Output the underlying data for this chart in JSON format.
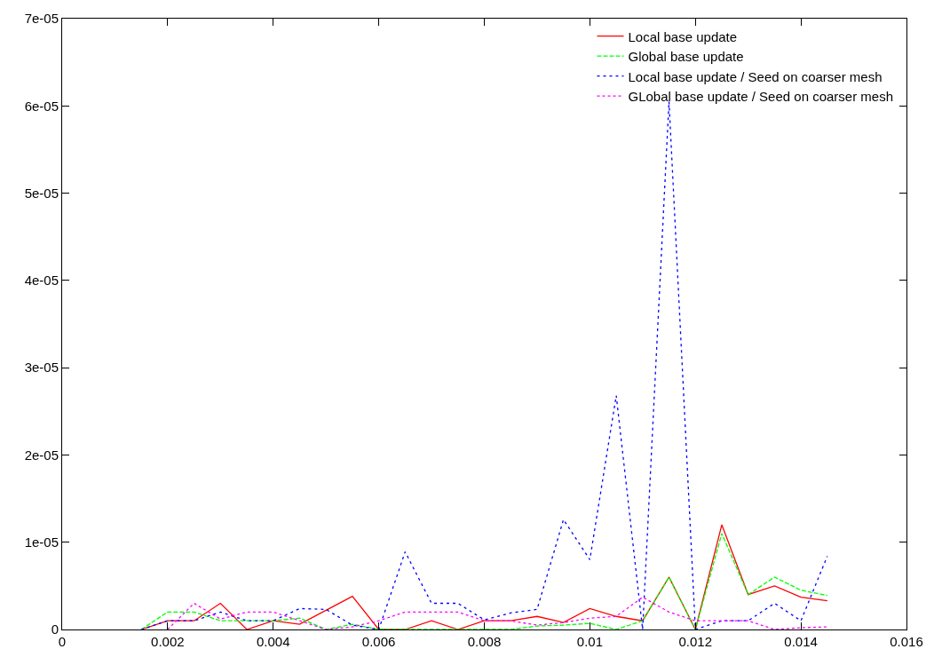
{
  "chart_data": {
    "type": "line",
    "x": [
      0.0015,
      0.002,
      0.0025,
      0.003,
      0.0035,
      0.004,
      0.0045,
      0.005,
      0.0055,
      0.006,
      0.0065,
      0.007,
      0.0075,
      0.008,
      0.0085,
      0.009,
      0.0095,
      0.01,
      0.0105,
      0.011,
      0.0115,
      0.012,
      0.0125,
      0.013,
      0.0135,
      0.014,
      0.0145
    ],
    "series": [
      {
        "name": "Local base update",
        "color": "#ff0000",
        "line_style": "solid",
        "values": [
          0,
          1e-06,
          1e-06,
          3e-06,
          0,
          1e-06,
          6e-07,
          2.2e-06,
          3.8e-06,
          0,
          0,
          1e-06,
          0,
          1e-06,
          1e-06,
          1.5e-06,
          8e-07,
          2.4e-06,
          1.5e-06,
          1e-06,
          6e-06,
          0,
          1.2e-05,
          4e-06,
          5e-06,
          3.7e-06,
          3.3e-06
        ]
      },
      {
        "name": "Global base update",
        "color": "#00ff00",
        "line_style": "dashed",
        "values": [
          0,
          2e-06,
          2e-06,
          1e-06,
          1e-06,
          1e-06,
          1.3e-06,
          0,
          6e-07,
          0,
          0,
          0,
          0,
          0,
          0,
          4e-07,
          5e-07,
          7e-07,
          0,
          1e-06,
          6e-06,
          0,
          1.1e-05,
          4e-06,
          6e-06,
          4.5e-06,
          3.9e-06
        ]
      },
      {
        "name": "Local base update / Seed on coarser mesh",
        "color": "#0000ff",
        "line_style": "dashed_fine",
        "values": [
          0,
          1e-06,
          1e-06,
          2e-06,
          1e-06,
          1e-06,
          2.4e-06,
          2.3e-06,
          5e-07,
          0,
          8.9e-06,
          3e-06,
          3e-06,
          1.1e-06,
          1.9e-06,
          2.3e-06,
          1.26e-05,
          8e-06,
          2.68e-05,
          0,
          6.05e-05,
          0,
          1e-06,
          1e-06,
          3e-06,
          1e-06,
          8.4e-06
        ]
      },
      {
        "name": "GLobal base update / Seed on coarser mesh",
        "color": "#ff00ff",
        "line_style": "dotted",
        "x": [
          0.002,
          0.0025,
          0.003,
          0.0035,
          0.004,
          0.0045,
          0.005,
          0.0055,
          0.006,
          0.0065,
          0.007,
          0.0075,
          0.008,
          0.0085,
          0.009,
          0.0095,
          0.01,
          0.0105,
          0.011,
          0.0115,
          0.012,
          0.0125,
          0.013,
          0.0135,
          0.014,
          0.0145
        ],
        "values": [
          0,
          3e-06,
          1.2e-06,
          2e-06,
          2e-06,
          1e-06,
          0,
          3e-07,
          1e-06,
          2e-06,
          2e-06,
          2e-06,
          1e-06,
          1e-06,
          5e-07,
          8e-07,
          1.3e-06,
          1.5e-06,
          3.7e-06,
          2e-06,
          1e-06,
          1e-06,
          1e-06,
          0,
          2e-07,
          3e-07
        ]
      }
    ],
    "xlim": [
      0,
      0.016
    ],
    "xticks": [
      0,
      0.002,
      0.004,
      0.006,
      0.008,
      0.01,
      0.012,
      0.014,
      0.016
    ],
    "ylim": [
      0,
      7e-05
    ],
    "yticks": [
      {
        "value": 0,
        "label": "0"
      },
      {
        "value": 1e-05,
        "label": "1e-05"
      },
      {
        "value": 2e-05,
        "label": "2e-05"
      },
      {
        "value": 3e-05,
        "label": "3e-05"
      },
      {
        "value": 4e-05,
        "label": "4e-05"
      },
      {
        "value": 5e-05,
        "label": "5e-05"
      },
      {
        "value": 6e-05,
        "label": "6e-05"
      },
      {
        "value": 7e-05,
        "label": "7e-05"
      }
    ],
    "legend": "top right",
    "marker": "none"
  }
}
